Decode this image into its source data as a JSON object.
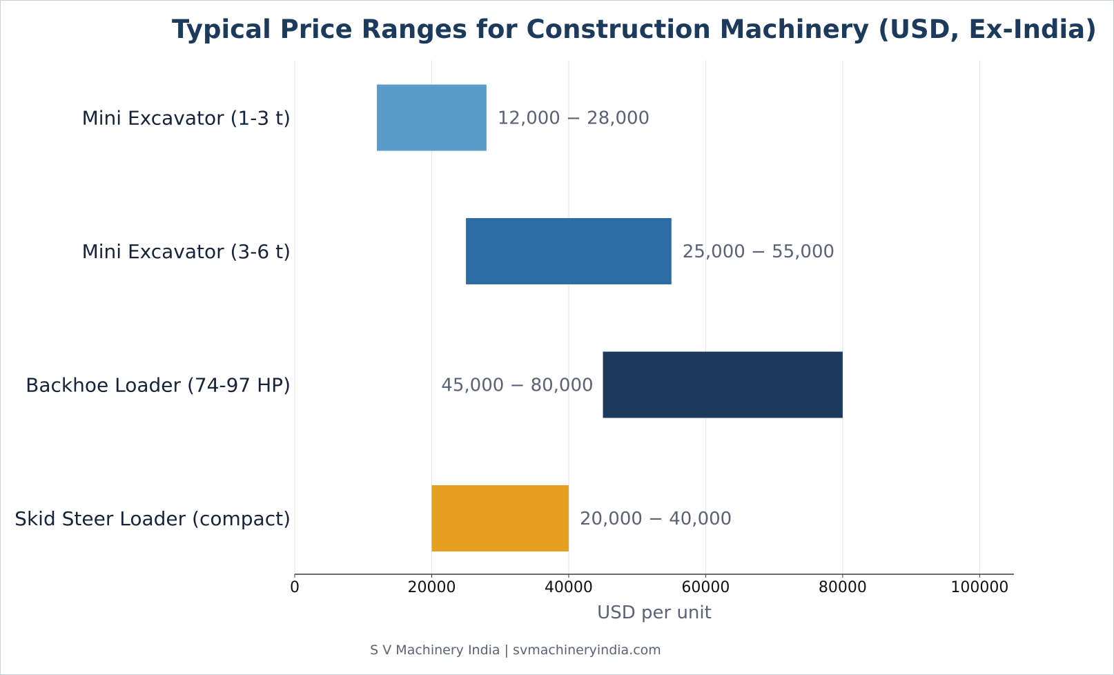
{
  "chart_data": {
    "type": "bar",
    "orientation": "horizontal-range",
    "title": "Typical Price Ranges for Construction Machinery (USD, Ex-India)",
    "xlabel": "USD per unit",
    "ylabel": "",
    "xlim": [
      0,
      105000
    ],
    "x_ticks": [
      0,
      20000,
      40000,
      60000,
      80000,
      100000
    ],
    "grid": "vertical",
    "categories": [
      "Mini Excavator (1-3 t)",
      "Mini Excavator (3-6 t)",
      "Backhoe Loader (74-97 HP)",
      "Skid Steer Loader (compact)"
    ],
    "ranges": [
      {
        "low": 12000,
        "high": 28000,
        "label": "12,000 − 28,000",
        "label_side": "right",
        "color": "#5b9bc9"
      },
      {
        "low": 25000,
        "high": 55000,
        "label": "25,000 − 55,000",
        "label_side": "right",
        "color": "#2e6da4"
      },
      {
        "low": 45000,
        "high": 80000,
        "label": "45,000 − 80,000",
        "label_side": "left",
        "color": "#1b3a5c"
      },
      {
        "low": 20000,
        "high": 40000,
        "label": "20,000 − 40,000",
        "label_side": "right",
        "color": "#e5a020"
      }
    ]
  },
  "footer": "S V Machinery India | svmachineryindia.com"
}
